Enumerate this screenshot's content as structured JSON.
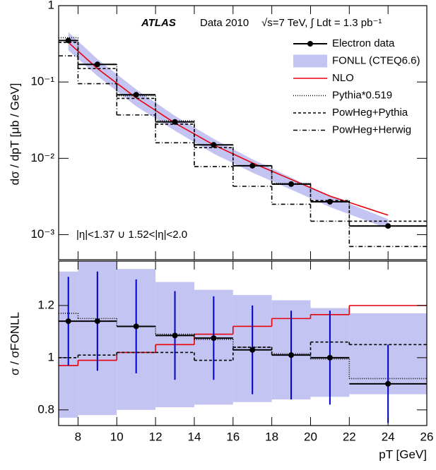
{
  "chart_data": [
    {
      "type": "line",
      "log_y": true,
      "legend": "top-right",
      "annotations": [
        "ATLAS",
        "Data 2010",
        "√s=7 TeV, ∫ Ldt = 1.3 pb⁻¹",
        "|η|<1.37 ∪ 1.52<|η|<2.0"
      ],
      "ylabel": "dσ / dpT [μb / GeV]",
      "xlim": [
        7,
        26
      ],
      "ylim": [
        0.00047,
        1
      ],
      "yticks": [
        {
          "value": 0.001,
          "label": "10⁻³"
        },
        {
          "value": 0.01,
          "label": "10⁻²"
        },
        {
          "value": 0.1,
          "label": "10⁻¹"
        },
        1
      ],
      "bins": [
        7,
        8,
        10,
        12,
        14,
        16,
        18,
        20,
        22,
        26
      ],
      "x": [
        7.5,
        9,
        11,
        13,
        15,
        17,
        19,
        21,
        24
      ],
      "series": [
        {
          "name": "Electron data",
          "style": "points",
          "color": "#000000",
          "values": [
            0.35,
            0.17,
            0.068,
            0.03,
            0.015,
            0.008,
            0.0046,
            0.0027,
            0.0013
          ]
        },
        {
          "name": "FONLL (CTEQ6.6)",
          "style": "band",
          "color": "#c4c4f2",
          "upper": [
            0.45,
            0.2,
            0.08,
            0.036,
            0.018,
            0.0097,
            0.0056,
            0.0032,
            0.0016
          ],
          "lower": [
            0.26,
            0.12,
            0.048,
            0.023,
            0.0115,
            0.0065,
            0.0039,
            0.0023,
            0.0012
          ]
        },
        {
          "name": "NLO",
          "style": "line",
          "color": "#e8000b",
          "values": [
            0.33,
            0.15,
            0.062,
            0.029,
            0.015,
            0.0087,
            0.0053,
            0.0032,
            0.0018
          ]
        },
        {
          "name": "Pythia*0.519",
          "style": "step",
          "dash": "1,2",
          "color": "#000000",
          "values": [
            0.38,
            0.17,
            0.066,
            0.031,
            0.015,
            0.008,
            0.0047,
            0.0027,
            0.0013
          ]
        },
        {
          "name": "PowHeg+Pythia",
          "style": "step",
          "dash": "4,3",
          "color": "#000000",
          "values": [
            0.33,
            0.15,
            0.061,
            0.028,
            0.0138,
            0.008,
            0.0046,
            0.0028,
            0.0015
          ]
        },
        {
          "name": "PowHeg+Herwig",
          "style": "step",
          "dash": "6,3,1,3",
          "color": "#000000",
          "values": [
            0.22,
            0.095,
            0.037,
            0.016,
            0.0078,
            0.0043,
            0.0025,
            0.0015,
            0.0007
          ]
        }
      ]
    },
    {
      "type": "line",
      "ylabel": "σ / σFONLL",
      "xlabel": "pT [GeV]",
      "xlim": [
        7,
        26
      ],
      "ylim": [
        0.74,
        1.37
      ],
      "xticks": [
        8,
        10,
        12,
        14,
        16,
        18,
        20,
        22,
        24,
        26
      ],
      "yticks": [
        0.8,
        1,
        1.2
      ],
      "bins": [
        7,
        8,
        10,
        12,
        14,
        16,
        18,
        20,
        22,
        26
      ],
      "x": [
        7.5,
        9,
        11,
        13,
        15,
        17,
        19,
        21,
        24
      ],
      "series": [
        {
          "style": "band",
          "color": "#c4c4f2",
          "upper": [
            1.33,
            1.37,
            1.34,
            1.29,
            1.26,
            1.24,
            1.22,
            1.19,
            1.17
          ],
          "lower": [
            0.77,
            0.78,
            0.8,
            0.81,
            0.82,
            0.83,
            0.84,
            0.85,
            0.86
          ]
        },
        {
          "style": "step",
          "color": "#e8000b",
          "values": [
            0.97,
            0.99,
            1.02,
            1.05,
            1.09,
            1.12,
            1.15,
            1.165,
            1.2
          ]
        },
        {
          "style": "step",
          "dash": "1,2",
          "color": "#000000",
          "values": [
            1.17,
            1.15,
            1.12,
            1.09,
            1.07,
            1.04,
            1.015,
            0.995,
            0.92
          ]
        },
        {
          "style": "step",
          "dash": "4,3",
          "color": "#000000",
          "values": [
            1.0,
            1.01,
            1.02,
            1.02,
            0.99,
            1.04,
            1.01,
            1.06,
            1.05
          ]
        },
        {
          "style": "points",
          "color": "#000000",
          "error_color": "#0000cc",
          "values": [
            1.14,
            1.14,
            1.12,
            1.085,
            1.075,
            1.03,
            1.01,
            1.0,
            0.9
          ],
          "errors": [
            0.17,
            0.19,
            0.18,
            0.17,
            0.16,
            0.17,
            0.17,
            0.18,
            0.15
          ]
        }
      ]
    }
  ]
}
